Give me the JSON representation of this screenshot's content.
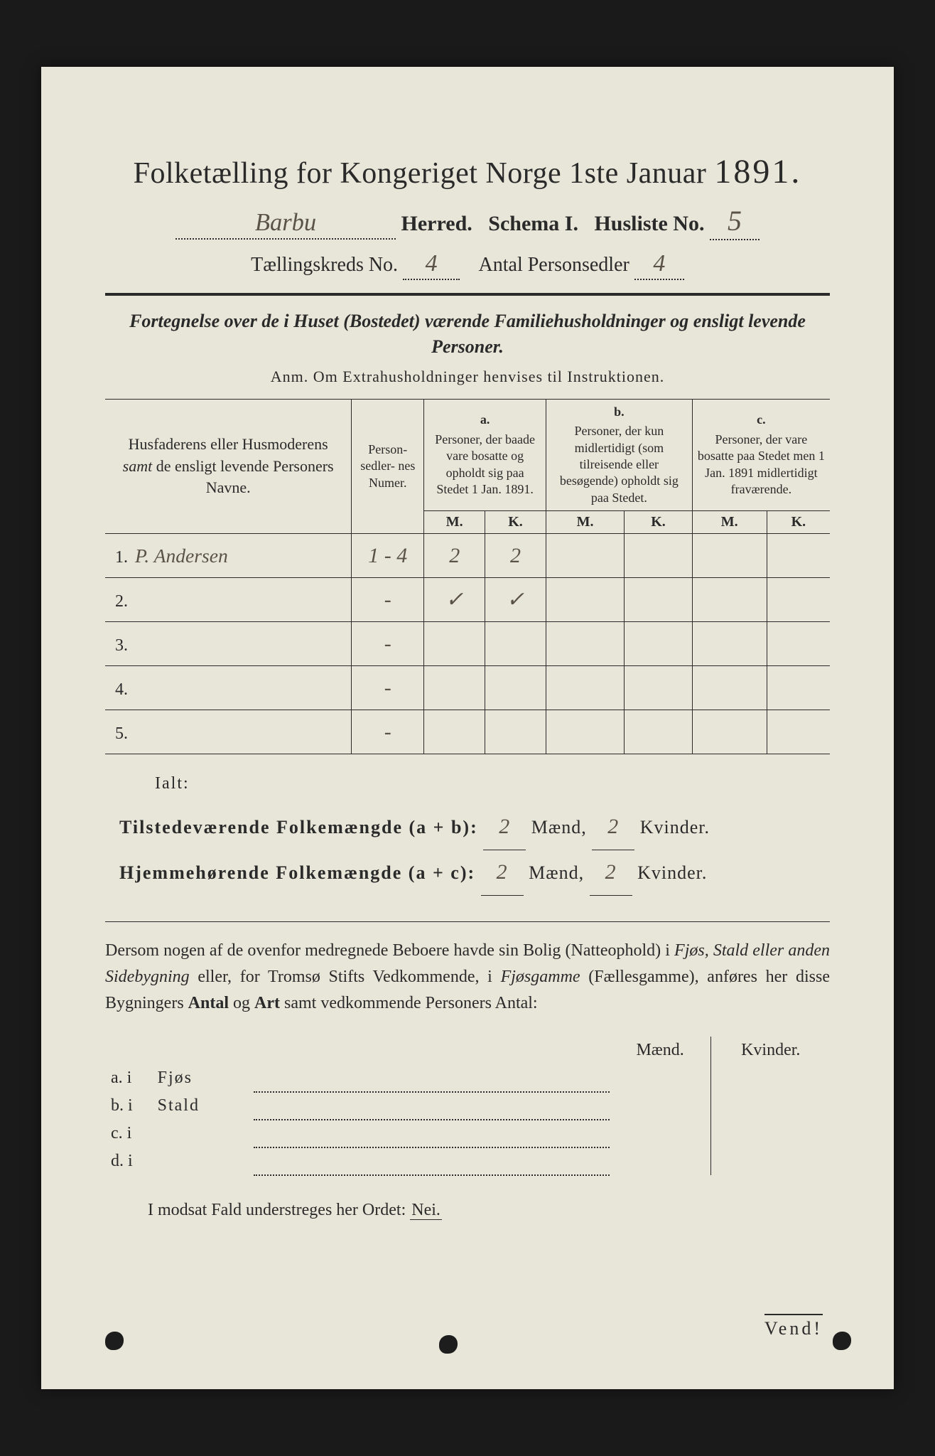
{
  "header": {
    "title_left": "Folketælling for Kongeriget Norge 1ste Januar",
    "year": "1891.",
    "herred_value": "Barbu",
    "herred_label": "Herred.",
    "schema_label": "Schema I.",
    "husliste_label": "Husliste No.",
    "husliste_value": "5",
    "kreds_label": "Tællingskreds No.",
    "kreds_value": "4",
    "antal_label": "Antal Personsedler",
    "antal_value": "4"
  },
  "subtitle": "Fortegnelse over de i Huset (Bostedet) værende Familiehusholdninger og ensligt levende Personer.",
  "anm": "Anm.  Om Extrahusholdninger henvises til Instruktionen.",
  "table": {
    "head_names": "Husfaderens eller Husmoderens <i>samt</i> de ensligt levende Personers Navne.",
    "head_numer": "Person-\nsedler-\nnes\nNumer.",
    "head_a_top": "a.",
    "head_a": "Personer, der baade vare bosatte og opholdt sig paa Stedet 1 Jan. 1891.",
    "head_b_top": "b.",
    "head_b": "Personer, der kun midlertidigt (som tilreisende eller besøgende) opholdt sig paa Stedet.",
    "head_c_top": "c.",
    "head_c": "Personer, der vare bosatte paa Stedet men 1 Jan. 1891 midlertidigt fraværende.",
    "mk_m": "M.",
    "mk_k": "K.",
    "rows": [
      {
        "n": "1.",
        "name": "P. Andersen",
        "numer": "1 - 4",
        "a_m": "2",
        "a_k": "2",
        "b_m": "",
        "b_k": "",
        "c_m": "",
        "c_k": ""
      },
      {
        "n": "2.",
        "name": "",
        "numer": "-",
        "a_m": "✓",
        "a_k": "✓",
        "b_m": "",
        "b_k": "",
        "c_m": "",
        "c_k": ""
      },
      {
        "n": "3.",
        "name": "",
        "numer": "-",
        "a_m": "",
        "a_k": "",
        "b_m": "",
        "b_k": "",
        "c_m": "",
        "c_k": ""
      },
      {
        "n": "4.",
        "name": "",
        "numer": "-",
        "a_m": "",
        "a_k": "",
        "b_m": "",
        "b_k": "",
        "c_m": "",
        "c_k": ""
      },
      {
        "n": "5.",
        "name": "",
        "numer": "-",
        "a_m": "",
        "a_k": "",
        "b_m": "",
        "b_k": "",
        "c_m": "",
        "c_k": ""
      }
    ]
  },
  "ialt": "Ialt:",
  "totals": {
    "line1_label": "Tilstedeværende Folkemængde (a + b):",
    "line2_label": "Hjemmehørende Folkemængde (a + c):",
    "maend": "Mænd,",
    "kvinder": "Kvinder.",
    "t1_m": "2",
    "t1_k": "2",
    "t2_m": "2",
    "t2_k": "2"
  },
  "para": "Dersom nogen af de ovenfor medregnede Beboere havde sin Bolig (Natteophold) i <i>Fjøs, Stald eller anden Sidebygning</i> eller, for Tromsø Stifts Vedkommende, i <i>Fjøsgamme</i> (Fællesgamme), anføres her disse Bygningers <b>Antal</b> og <b>Art</b> samt vedkommende Personers Antal:",
  "lower": {
    "head_m": "Mænd.",
    "head_k": "Kvinder.",
    "rows": [
      {
        "label": "a.  i",
        "kind": "Fjøs"
      },
      {
        "label": "b.  i",
        "kind": "Stald"
      },
      {
        "label": "c.  i",
        "kind": ""
      },
      {
        "label": "d.  i",
        "kind": ""
      }
    ]
  },
  "nei_line_pre": "I modsat Fald understreges her Ordet:",
  "nei": "Nei.",
  "vend": "Vend!",
  "colors": {
    "paper": "#e8e6d8",
    "ink": "#2a2a2a",
    "handwriting": "#5a5248",
    "background": "#1a1a1a"
  }
}
